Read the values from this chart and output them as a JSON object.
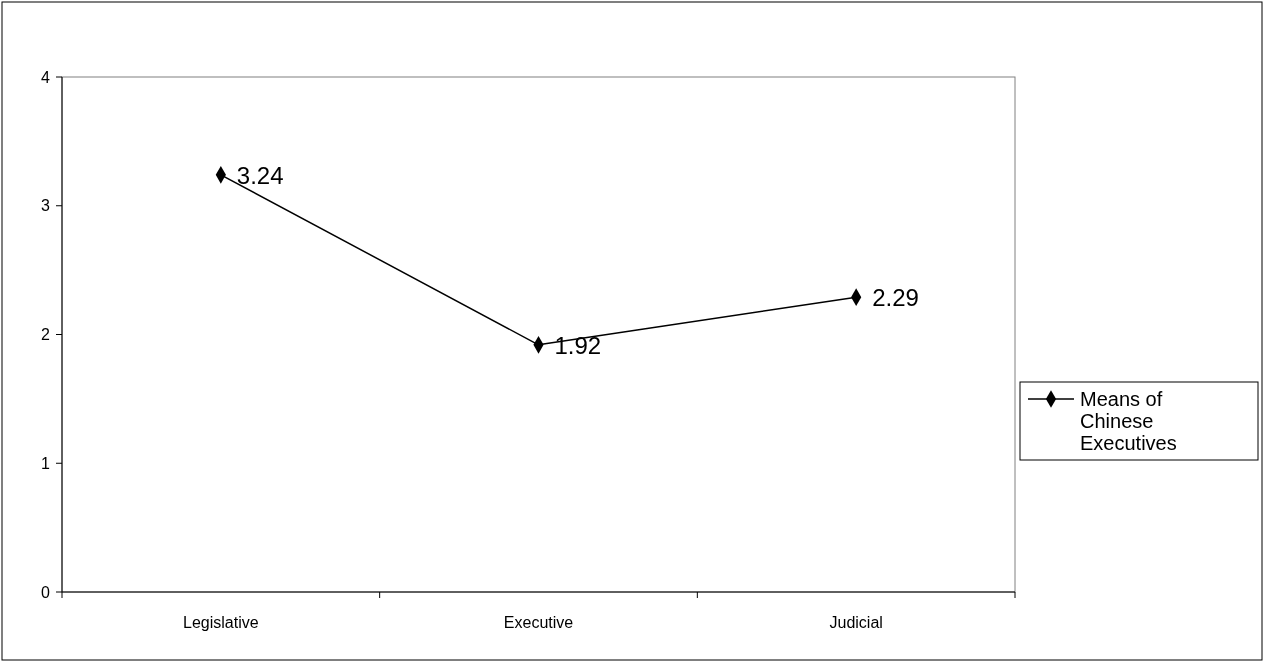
{
  "chart_data": {
    "type": "line",
    "categories": [
      "Legislative",
      "Executive",
      "Judicial"
    ],
    "series": [
      {
        "name": "Means of Chinese Executives",
        "color": "#000000",
        "values": [
          3.24,
          1.92,
          2.29
        ]
      }
    ],
    "ylim": [
      0,
      4
    ],
    "yticks": [
      0,
      1,
      2,
      3,
      4
    ],
    "grid": false,
    "legend": "right",
    "marker": "diamond",
    "line_style": "solid",
    "data_labels": true
  }
}
